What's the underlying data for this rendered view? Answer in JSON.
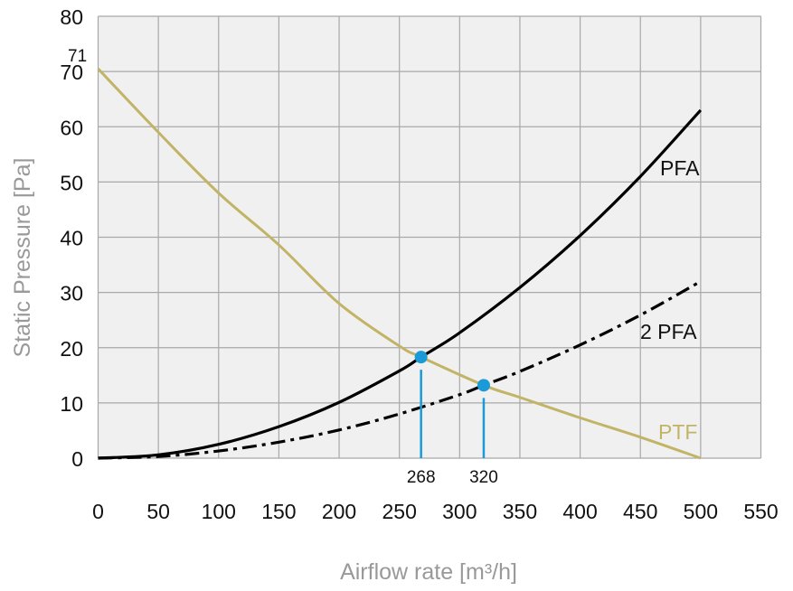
{
  "chart_data": {
    "type": "line",
    "title": "",
    "xlabel": "Airflow rate [m³/h]",
    "ylabel": "Static Pressure [Pa]",
    "xlim": [
      0,
      550
    ],
    "ylim": [
      0,
      80
    ],
    "xticks": [
      0,
      50,
      100,
      150,
      200,
      250,
      300,
      350,
      400,
      450,
      500,
      550
    ],
    "yticks": [
      0,
      10,
      20,
      30,
      40,
      50,
      60,
      70,
      80
    ],
    "grid": true,
    "background": "#f0f0f0",
    "series": [
      {
        "name": "PFA",
        "color": "#000000",
        "style": "solid",
        "x": [
          0,
          50,
          100,
          150,
          200,
          250,
          268,
          300,
          350,
          400,
          450,
          500
        ],
        "y": [
          0,
          0.6,
          2.5,
          5.7,
          10.1,
          15.8,
          18.3,
          22.7,
          30.9,
          40.3,
          51.0,
          63.0
        ]
      },
      {
        "name": "2 PFA",
        "color": "#000000",
        "style": "dash-dot",
        "x": [
          0,
          50,
          100,
          150,
          200,
          250,
          300,
          320,
          350,
          400,
          450,
          500
        ],
        "y": [
          0,
          0.3,
          1.3,
          2.9,
          5.1,
          8.0,
          11.5,
          13.2,
          15.7,
          20.5,
          25.9,
          32.0
        ]
      },
      {
        "name": "PTF",
        "color": "#c2b467",
        "style": "solid",
        "x": [
          0,
          50,
          100,
          150,
          200,
          250,
          268,
          320,
          350,
          400,
          450,
          500
        ],
        "y": [
          70.5,
          59,
          48,
          38.6,
          28,
          20.3,
          18.3,
          13.2,
          11,
          7.3,
          3.8,
          0
        ]
      }
    ],
    "annotations": {
      "y_start_label": "71",
      "operating_points": [
        {
          "label": "268",
          "x": 268,
          "y": 18.3
        },
        {
          "label": "320",
          "x": 320,
          "y": 13.2
        }
      ],
      "marker_color": "#1a9ad7"
    }
  }
}
